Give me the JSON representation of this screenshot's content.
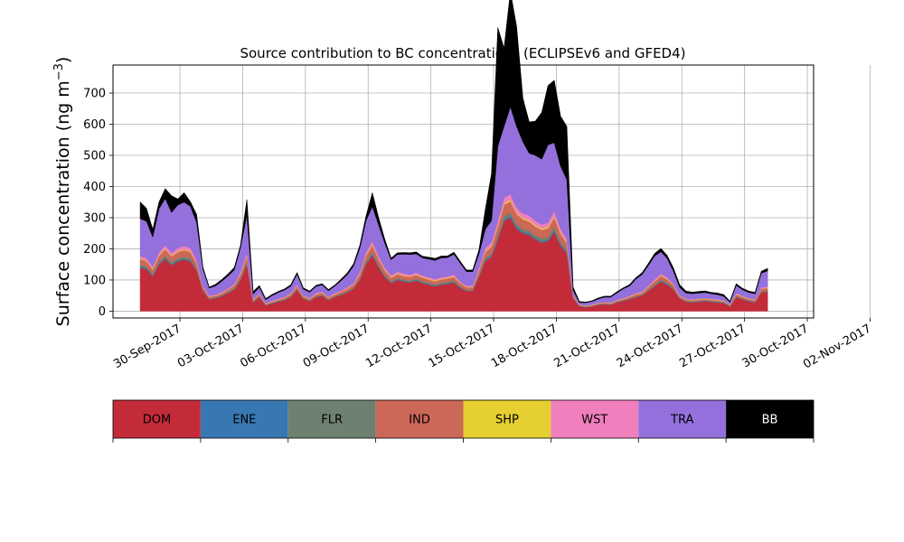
{
  "chart_data": {
    "type": "area",
    "title": "Source contribution to BC concentrations (ECLIPSEv6 and GFED4)",
    "ylabel_main": "Surface concentration (ng m",
    "ylabel_sup": "−3",
    "ylabel_close": ")",
    "xlabel": "",
    "x_tick_labels": [
      "30-Sep-2017",
      "03-Oct-2017",
      "06-Oct-2017",
      "09-Oct-2017",
      "12-Oct-2017",
      "15-Oct-2017",
      "18-Oct-2017",
      "21-Oct-2017",
      "24-Oct-2017",
      "27-Oct-2017",
      "30-Oct-2017",
      "02-Nov-2017"
    ],
    "y_ticks": [
      0,
      100,
      200,
      300,
      400,
      500,
      600,
      700
    ],
    "ylim": [
      -22,
      790
    ],
    "xlim_days": [
      -3.2,
      30.3
    ],
    "grid": true,
    "legend_placement": "below",
    "legend": [
      {
        "name": "DOM",
        "color": "#c42b39",
        "text_color": "#000000"
      },
      {
        "name": "ENE",
        "color": "#3878b2",
        "text_color": "#000000"
      },
      {
        "name": "FLR",
        "color": "#6e8070",
        "text_color": "#000000"
      },
      {
        "name": "IND",
        "color": "#cc6858",
        "text_color": "#000000"
      },
      {
        "name": "SHP",
        "color": "#e6cf30",
        "text_color": "#000000"
      },
      {
        "name": "WST",
        "color": "#f07fbd",
        "text_color": "#000000"
      },
      {
        "name": "TRA",
        "color": "#9370db",
        "text_color": "#000000"
      },
      {
        "name": "BB",
        "color": "#000000",
        "text_color": "#ffffff"
      }
    ],
    "x_days": [
      -1.9,
      -1.6,
      -1.3,
      -1.0,
      -0.7,
      -0.4,
      -0.1,
      0.2,
      0.5,
      0.8,
      1.1,
      1.4,
      1.7,
      2.0,
      2.3,
      2.6,
      2.9,
      3.2,
      3.5,
      3.8,
      4.1,
      4.4,
      4.7,
      5.0,
      5.3,
      5.6,
      5.9,
      6.2,
      6.5,
      6.8,
      7.1,
      7.4,
      7.7,
      8.0,
      8.3,
      8.6,
      8.9,
      9.2,
      9.5,
      9.8,
      10.1,
      10.4,
      10.7,
      11.0,
      11.3,
      11.6,
      11.9,
      12.2,
      12.5,
      12.8,
      13.1,
      13.4,
      13.7,
      14.0,
      14.3,
      14.6,
      14.9,
      15.2,
      15.5,
      15.8,
      16.1,
      16.4,
      16.7,
      17.0,
      17.3,
      17.6,
      17.9,
      18.2,
      18.5,
      18.8,
      19.1,
      19.4,
      19.7,
      20.0,
      20.3,
      20.6,
      20.9,
      21.2,
      21.5,
      21.8,
      22.1,
      22.4,
      22.7,
      23.0,
      23.3,
      23.6,
      23.9,
      24.2,
      24.5,
      24.8,
      25.1,
      25.4,
      25.7,
      26.0,
      26.3,
      26.6,
      26.9,
      27.2,
      27.5,
      27.8,
      28.1
    ],
    "dom": [
      140,
      135,
      112,
      150,
      168,
      148,
      160,
      165,
      160,
      130,
      65,
      38,
      42,
      48,
      58,
      70,
      100,
      150,
      28,
      45,
      18,
      25,
      30,
      35,
      45,
      68,
      40,
      32,
      45,
      50,
      35,
      45,
      52,
      60,
      72,
      100,
      150,
      180,
      140,
      110,
      90,
      100,
      95,
      92,
      98,
      90,
      85,
      80,
      85,
      88,
      92,
      75,
      65,
      65,
      110,
      160,
      175,
      230,
      290,
      300,
      265,
      250,
      245,
      230,
      220,
      225,
      255,
      210,
      185,
      42,
      16,
      12,
      15,
      20,
      22,
      20,
      28,
      32,
      38,
      45,
      50,
      65,
      80,
      95,
      85,
      70,
      40,
      30,
      28,
      30,
      32,
      30,
      28,
      26,
      15,
      45,
      38,
      32,
      28,
      60,
      62
    ],
    "ene": [
      3,
      3,
      3,
      3,
      3,
      3,
      3,
      3,
      3,
      2,
      2,
      1,
      1,
      1,
      1,
      1,
      2,
      3,
      1,
      1,
      1,
      1,
      1,
      1,
      1,
      1,
      1,
      1,
      1,
      1,
      1,
      1,
      1,
      1,
      1,
      2,
      3,
      3,
      3,
      2,
      2,
      2,
      2,
      2,
      2,
      2,
      2,
      2,
      2,
      2,
      2,
      2,
      1,
      1,
      2,
      3,
      3,
      4,
      5,
      5,
      5,
      4,
      4,
      4,
      4,
      4,
      5,
      4,
      4,
      1,
      1,
      1,
      1,
      1,
      1,
      1,
      1,
      1,
      1,
      1,
      1,
      1,
      2,
      2,
      2,
      1,
      1,
      1,
      1,
      1,
      1,
      1,
      1,
      1,
      1,
      1,
      1,
      1,
      1,
      1,
      1
    ],
    "flr": [
      6,
      6,
      5,
      6,
      7,
      6,
      7,
      7,
      7,
      6,
      3,
      2,
      2,
      2,
      3,
      3,
      4,
      6,
      2,
      2,
      1,
      1,
      2,
      2,
      2,
      3,
      2,
      2,
      2,
      2,
      2,
      2,
      2,
      3,
      3,
      4,
      6,
      7,
      6,
      5,
      4,
      4,
      4,
      4,
      4,
      4,
      4,
      4,
      4,
      4,
      4,
      3,
      3,
      3,
      5,
      7,
      7,
      9,
      11,
      11,
      10,
      10,
      9,
      9,
      9,
      9,
      10,
      8,
      7,
      2,
      1,
      1,
      1,
      1,
      1,
      1,
      1,
      2,
      2,
      2,
      2,
      3,
      4,
      4,
      4,
      3,
      2,
      2,
      2,
      2,
      2,
      2,
      2,
      2,
      1,
      2,
      2,
      2,
      2,
      3,
      3
    ],
    "ind": [
      18,
      17,
      14,
      19,
      21,
      19,
      20,
      21,
      20,
      17,
      8,
      5,
      5,
      6,
      7,
      9,
      13,
      19,
      4,
      6,
      3,
      3,
      4,
      5,
      6,
      9,
      5,
      4,
      6,
      6,
      5,
      6,
      7,
      8,
      9,
      13,
      19,
      22,
      18,
      14,
      12,
      13,
      12,
      12,
      12,
      12,
      11,
      10,
      11,
      11,
      12,
      10,
      8,
      8,
      14,
      20,
      22,
      29,
      36,
      37,
      33,
      31,
      30,
      29,
      28,
      28,
      32,
      27,
      23,
      5,
      2,
      2,
      2,
      3,
      3,
      3,
      4,
      4,
      5,
      6,
      6,
      8,
      10,
      12,
      11,
      9,
      5,
      4,
      4,
      4,
      4,
      4,
      4,
      3,
      2,
      6,
      5,
      4,
      4,
      8,
      8
    ],
    "shp": [
      2,
      2,
      2,
      2,
      3,
      2,
      3,
      3,
      3,
      2,
      1,
      1,
      1,
      1,
      1,
      1,
      2,
      2,
      1,
      1,
      1,
      1,
      1,
      1,
      1,
      1,
      1,
      1,
      1,
      1,
      1,
      1,
      1,
      1,
      1,
      2,
      2,
      3,
      2,
      2,
      2,
      2,
      2,
      2,
      2,
      2,
      2,
      2,
      2,
      2,
      2,
      1,
      1,
      1,
      2,
      3,
      3,
      4,
      5,
      5,
      4,
      4,
      4,
      4,
      4,
      4,
      4,
      4,
      3,
      1,
      1,
      1,
      1,
      1,
      1,
      1,
      1,
      1,
      1,
      1,
      1,
      1,
      1,
      2,
      2,
      1,
      1,
      1,
      1,
      1,
      1,
      1,
      1,
      1,
      1,
      1,
      1,
      1,
      1,
      1,
      1
    ],
    "wst": [
      8,
      8,
      7,
      9,
      10,
      9,
      10,
      10,
      10,
      8,
      4,
      2,
      2,
      3,
      3,
      4,
      6,
      9,
      2,
      3,
      1,
      2,
      2,
      2,
      3,
      4,
      2,
      2,
      3,
      3,
      2,
      3,
      3,
      4,
      4,
      6,
      9,
      11,
      8,
      7,
      5,
      6,
      6,
      5,
      6,
      5,
      5,
      5,
      5,
      5,
      6,
      4,
      4,
      4,
      7,
      10,
      11,
      14,
      17,
      18,
      16,
      15,
      15,
      14,
      13,
      14,
      15,
      13,
      11,
      2,
      1,
      1,
      1,
      1,
      1,
      1,
      2,
      2,
      2,
      3,
      3,
      4,
      5,
      6,
      5,
      4,
      2,
      2,
      2,
      2,
      2,
      2,
      2,
      2,
      1,
      3,
      2,
      2,
      2,
      4,
      4
    ],
    "tra": [
      120,
      118,
      95,
      140,
      150,
      130,
      138,
      141,
      134,
      120,
      53,
      25,
      28,
      35,
      40,
      45,
      78,
      121,
      17,
      19,
      12,
      17,
      20,
      22,
      22,
      33,
      20,
      19,
      21,
      22,
      20,
      22,
      32,
      40,
      55,
      75,
      102,
      110,
      100,
      78,
      50,
      55,
      62,
      65,
      60,
      56,
      58,
      60,
      62,
      60,
      65,
      60,
      45,
      45,
      45,
      60,
      70,
      240,
      230,
      280,
      260,
      230,
      200,
      210,
      210,
      250,
      220,
      200,
      190,
      14,
      6,
      9,
      10,
      12,
      16,
      18,
      22,
      30,
      32,
      45,
      55,
      65,
      75,
      70,
      60,
      40,
      25,
      18,
      18,
      18,
      18,
      16,
      15,
      13,
      8,
      25,
      20,
      18,
      18,
      45,
      50
    ],
    "bb": [
      53,
      41,
      24,
      21,
      31,
      53,
      19,
      30,
      14,
      25,
      5,
      3,
      5,
      5,
      6,
      7,
      7,
      48,
      8,
      5,
      3,
      3,
      3,
      3,
      4,
      5,
      4,
      3,
      3,
      3,
      3,
      3,
      4,
      5,
      6,
      9,
      14,
      44,
      23,
      12,
      5,
      5,
      5,
      5,
      6,
      5,
      6,
      6,
      6,
      5,
      6,
      5,
      5,
      5,
      12,
      62,
      150,
      380,
      250,
      370,
      320,
      140,
      100,
      110,
      150,
      190,
      200,
      160,
      170,
      10,
      3,
      2,
      2,
      3,
      3,
      3,
      3,
      3,
      4,
      4,
      5,
      6,
      8,
      10,
      9,
      10,
      8,
      6,
      5,
      5,
      5,
      4,
      5,
      5,
      3,
      5,
      4,
      4,
      4,
      6,
      8
    ]
  }
}
